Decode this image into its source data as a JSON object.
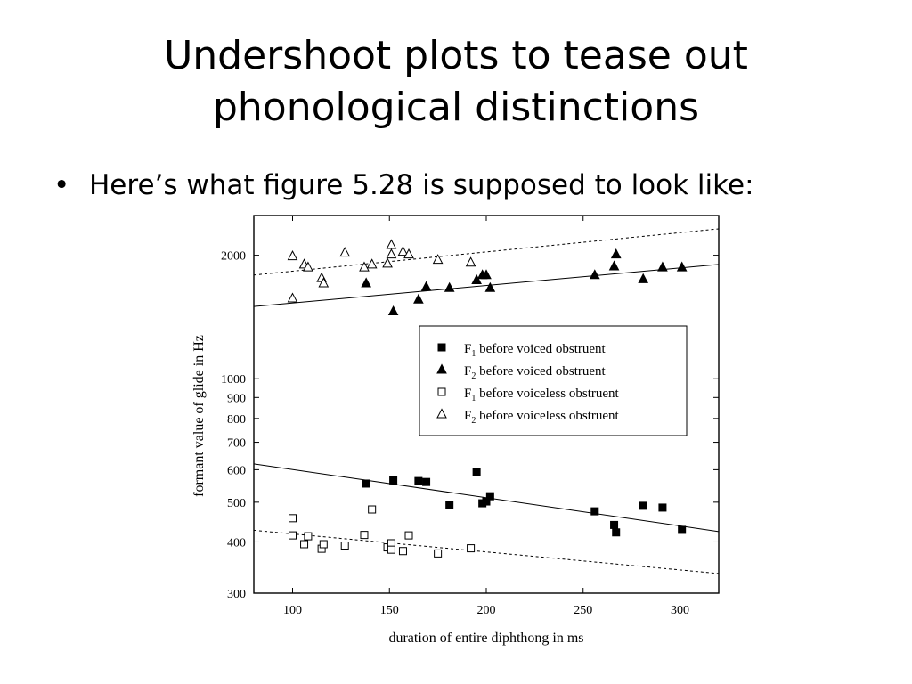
{
  "slide": {
    "title_line1": "Undershoot plots to tease out",
    "title_line2": "phonological distinctions",
    "bullet_symbol": "•",
    "bullet_text": "Here’s what figure 5.28 is supposed to look like:"
  },
  "chart_data": {
    "type": "scatter",
    "y_scale": "log",
    "xlabel": "duration of entire diphthong in ms",
    "ylabel": "formant value of glide in Hz",
    "xlim": [
      80,
      320
    ],
    "ylim": [
      300,
      2500
    ],
    "xticks": [
      100,
      150,
      200,
      250,
      300
    ],
    "yticks": [
      {
        "value": 300,
        "label": "300"
      },
      {
        "value": 400,
        "label": "400"
      },
      {
        "value": 500,
        "label": "500"
      },
      {
        "value": 600,
        "label": "600"
      },
      {
        "value": 700,
        "label": "700"
      },
      {
        "value": 800,
        "label": "800"
      },
      {
        "value": 900,
        "label": "900"
      },
      {
        "value": 1000,
        "label": "1000"
      },
      {
        "value": 2000,
        "label": "2000"
      }
    ],
    "legend_position": "center-right",
    "series": [
      {
        "name": "F1 before voiced obstruent",
        "legend_main": "F",
        "legend_sub": "1",
        "legend_rest": " before voiced obstruent",
        "marker": "filled-square",
        "points": [
          [
            138,
            555
          ],
          [
            152,
            565
          ],
          [
            165,
            563
          ],
          [
            169,
            560
          ],
          [
            181,
            493
          ],
          [
            195,
            592
          ],
          [
            198,
            497
          ],
          [
            200,
            502
          ],
          [
            202,
            517
          ],
          [
            256,
            475
          ],
          [
            266,
            440
          ],
          [
            267,
            422
          ],
          [
            281,
            490
          ],
          [
            291,
            485
          ],
          [
            301,
            428
          ]
        ],
        "fit": {
          "x": [
            80,
            320
          ],
          "y": [
            620,
            424
          ]
        }
      },
      {
        "name": "F2 before voiced obstruent",
        "legend_main": "F",
        "legend_sub": "2",
        "legend_rest": " before voiced obstruent",
        "marker": "filled-triangle",
        "points": [
          [
            138,
            1710
          ],
          [
            152,
            1460
          ],
          [
            165,
            1560
          ],
          [
            169,
            1675
          ],
          [
            181,
            1665
          ],
          [
            195,
            1740
          ],
          [
            198,
            1790
          ],
          [
            200,
            1790
          ],
          [
            202,
            1665
          ],
          [
            256,
            1790
          ],
          [
            266,
            1880
          ],
          [
            267,
            2010
          ],
          [
            281,
            1750
          ],
          [
            291,
            1870
          ],
          [
            301,
            1870
          ]
        ],
        "fit": {
          "x": [
            80,
            320
          ],
          "y": [
            1500,
            1900
          ]
        }
      },
      {
        "name": "F1 before voiceless obstruent",
        "legend_main": "F",
        "legend_sub": "1",
        "legend_rest": " before voiceless obstruent",
        "marker": "open-square",
        "points": [
          [
            100,
            415
          ],
          [
            100,
            457
          ],
          [
            106,
            395
          ],
          [
            108,
            413
          ],
          [
            115,
            385
          ],
          [
            116,
            395
          ],
          [
            127,
            392
          ],
          [
            137,
            416
          ],
          [
            141,
            480
          ],
          [
            149,
            388
          ],
          [
            151,
            397
          ],
          [
            151,
            383
          ],
          [
            157,
            380
          ],
          [
            160,
            415
          ],
          [
            175,
            375
          ],
          [
            192,
            386
          ]
        ],
        "fit": {
          "x": [
            80,
            320
          ],
          "y": [
            427,
            335
          ]
        }
      },
      {
        "name": "F2 before voiceless obstruent",
        "legend_main": "F",
        "legend_sub": "2",
        "legend_rest": " before voiceless obstruent",
        "marker": "open-triangle",
        "points": [
          [
            100,
            1990
          ],
          [
            100,
            1570
          ],
          [
            106,
            1900
          ],
          [
            108,
            1870
          ],
          [
            115,
            1760
          ],
          [
            116,
            1710
          ],
          [
            127,
            2030
          ],
          [
            137,
            1870
          ],
          [
            141,
            1900
          ],
          [
            149,
            1910
          ],
          [
            151,
            2120
          ],
          [
            151,
            2010
          ],
          [
            157,
            2040
          ],
          [
            160,
            2010
          ],
          [
            175,
            1950
          ],
          [
            192,
            1920
          ]
        ],
        "fit": {
          "x": [
            80,
            320
          ],
          "y": [
            1790,
            2320
          ]
        }
      }
    ]
  }
}
